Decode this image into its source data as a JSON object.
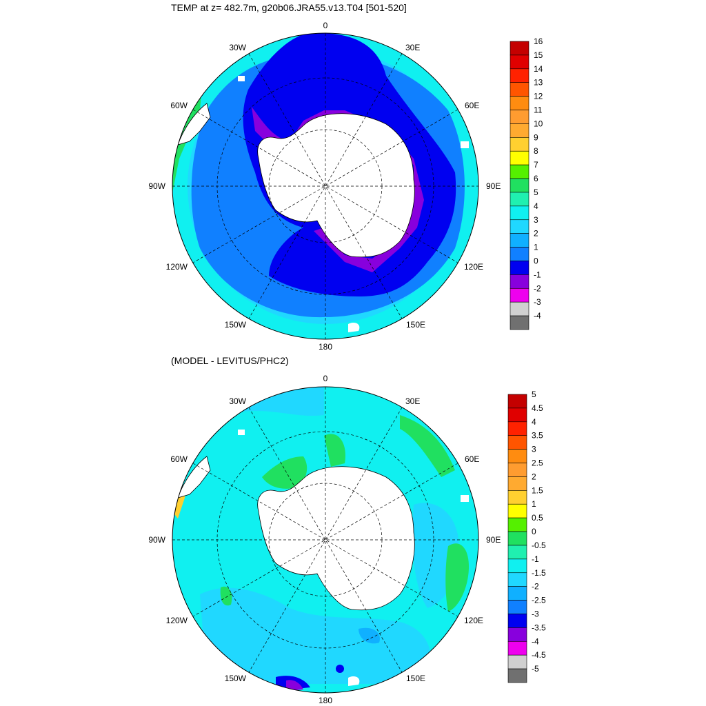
{
  "panels": [
    {
      "title": "TEMP at z= 482.7m, g20b06.JRA55.v13.T04 [501-520]",
      "longitude_labels": [
        "0",
        "30E",
        "60E",
        "90E",
        "120E",
        "150E",
        "180",
        "150W",
        "120W",
        "90W",
        "60W",
        "30W"
      ],
      "colorbar": {
        "labels": [
          "16",
          "15",
          "14",
          "13",
          "12",
          "11",
          "10",
          "9",
          "8",
          "7",
          "6",
          "5",
          "4",
          "3",
          "2",
          "1",
          "0",
          "-1",
          "-2",
          "-3",
          "-4"
        ],
        "colors": [
          "#c40000",
          "#e00000",
          "#ff2200",
          "#ff5500",
          "#ff8c10",
          "#ff9c30",
          "#ffaa30",
          "#ffd030",
          "#ffff00",
          "#55f000",
          "#20e060",
          "#20f0b0",
          "#10f0f0",
          "#20d8ff",
          "#10b0ff",
          "#1080ff",
          "#0000f0",
          "#8800dd",
          "#ee00ee",
          "#d0d0d0",
          "#707070"
        ]
      }
    },
    {
      "title": "(MODEL - LEVITUS/PHC2)",
      "longitude_labels": [
        "0",
        "30E",
        "60E",
        "90E",
        "120E",
        "150E",
        "180",
        "150W",
        "120W",
        "90W",
        "60W",
        "30W"
      ],
      "colorbar": {
        "labels": [
          "5",
          "4.5",
          "4",
          "3.5",
          "3",
          "2.5",
          "2",
          "1.5",
          "1",
          "0.5",
          "0",
          "-0.5",
          "-1",
          "-1.5",
          "-2",
          "-2.5",
          "-3",
          "-3.5",
          "-4",
          "-4.5",
          "-5"
        ],
        "colors": [
          "#c40000",
          "#e00000",
          "#ff2200",
          "#ff5500",
          "#ff8c10",
          "#ff9c30",
          "#ffaa30",
          "#ffd030",
          "#ffff00",
          "#55f000",
          "#20e060",
          "#20f0b0",
          "#10f0f0",
          "#20d8ff",
          "#10b0ff",
          "#1080ff",
          "#0000f0",
          "#8800dd",
          "#ee00ee",
          "#d0d0d0",
          "#707070"
        ]
      }
    }
  ]
}
